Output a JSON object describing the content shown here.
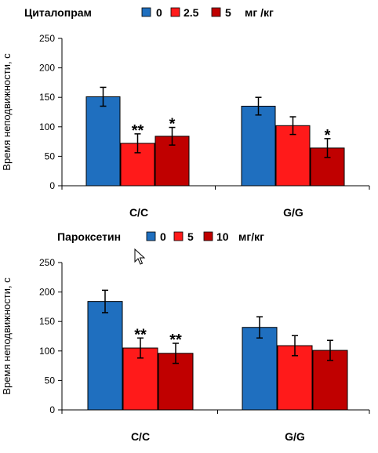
{
  "chart_data": [
    {
      "type": "bar",
      "title": "",
      "legend_title": "Циталопрам",
      "legend_unit": "мг /кг",
      "legend_placement": "top",
      "ylabel": "Время неподвижности, с",
      "xlabel": "",
      "ylim": [
        0,
        250
      ],
      "yticks": [
        "0",
        "50",
        "100",
        "150",
        "200",
        "250"
      ],
      "grid": false,
      "categories": [
        "C/C",
        "G/G"
      ],
      "series": [
        {
          "name": "0",
          "color": "#1f6fbf",
          "values": [
            151,
            135
          ],
          "errors": [
            16,
            15
          ],
          "significance": [
            "",
            ""
          ]
        },
        {
          "name": "2.5",
          "color": "#ff1a1a",
          "values": [
            72,
            102
          ],
          "errors": [
            16,
            15
          ],
          "significance": [
            "**",
            ""
          ]
        },
        {
          "name": "5",
          "color": "#c00000",
          "values": [
            84,
            64
          ],
          "errors": [
            15,
            16
          ],
          "significance": [
            "*",
            "*"
          ]
        }
      ]
    },
    {
      "type": "bar",
      "title": "",
      "legend_title": "Пароксетин",
      "legend_unit": "мг/кг",
      "legend_placement": "top",
      "ylabel": "Время неподвижности, с",
      "xlabel": "",
      "ylim": [
        0,
        250
      ],
      "yticks": [
        "0",
        "50",
        "100",
        "150",
        "200",
        "250"
      ],
      "grid": false,
      "categories": [
        "C/C",
        "G/G"
      ],
      "series": [
        {
          "name": "0",
          "color": "#1f6fbf",
          "values": [
            184,
            140
          ],
          "errors": [
            19,
            18
          ],
          "significance": [
            "",
            ""
          ]
        },
        {
          "name": "5",
          "color": "#ff1a1a",
          "values": [
            105,
            109
          ],
          "errors": [
            17,
            17
          ],
          "significance": [
            "**",
            ""
          ]
        },
        {
          "name": "10",
          "color": "#c00000",
          "values": [
            96,
            101
          ],
          "errors": [
            17,
            17
          ],
          "significance": [
            "**",
            ""
          ]
        }
      ]
    }
  ]
}
